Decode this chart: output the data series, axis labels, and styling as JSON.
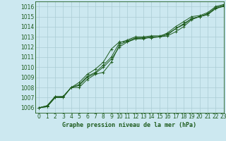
{
  "title": "Graphe pression niveau de la mer (hPa)",
  "xlabel": "Graphe pression niveau de la mer (hPa)",
  "bg_color": "#cce8f0",
  "grid_color": "#aaccd4",
  "line_color": "#1e5c1e",
  "xlim": [
    -0.5,
    23
  ],
  "ylim": [
    1005.5,
    1016.5
  ],
  "yticks": [
    1006,
    1007,
    1008,
    1009,
    1010,
    1011,
    1012,
    1013,
    1014,
    1015,
    1016
  ],
  "xticks": [
    0,
    1,
    2,
    3,
    4,
    5,
    6,
    7,
    8,
    9,
    10,
    11,
    12,
    13,
    14,
    15,
    16,
    17,
    18,
    19,
    20,
    21,
    22,
    23
  ],
  "series": [
    [
      1006.0,
      1006.2,
      1007.1,
      1007.1,
      1008.0,
      1008.3,
      1009.1,
      1009.5,
      1010.2,
      1011.0,
      1012.4,
      1012.7,
      1013.0,
      1013.0,
      1013.1,
      1013.1,
      1013.3,
      1013.8,
      1014.3,
      1014.8,
      1015.0,
      1015.3,
      1015.9,
      1016.1
    ],
    [
      1006.0,
      1006.2,
      1007.1,
      1007.1,
      1008.0,
      1008.2,
      1009.0,
      1009.4,
      1010.0,
      1010.8,
      1012.0,
      1012.5,
      1012.8,
      1012.9,
      1013.0,
      1013.0,
      1013.1,
      1013.5,
      1014.0,
      1014.7,
      1015.0,
      1015.2,
      1015.8,
      1016.0
    ],
    [
      1006.0,
      1006.1,
      1007.0,
      1007.1,
      1008.0,
      1008.5,
      1009.3,
      1009.8,
      1010.5,
      1011.8,
      1012.5,
      1012.5,
      1012.8,
      1012.8,
      1013.0,
      1013.0,
      1013.2,
      1013.8,
      1014.2,
      1014.8,
      1015.0,
      1015.2,
      1015.8,
      1016.1
    ],
    [
      1006.0,
      1006.1,
      1007.0,
      1007.0,
      1008.0,
      1008.0,
      1008.8,
      1009.3,
      1009.5,
      1010.5,
      1012.2,
      1012.6,
      1012.9,
      1012.9,
      1012.9,
      1013.0,
      1013.4,
      1014.0,
      1014.5,
      1015.0,
      1015.1,
      1015.4,
      1016.0,
      1016.2
    ]
  ],
  "ylabel_fontsize": 5.5,
  "tick_fontsize": 5.5,
  "label_fontsize": 6.0
}
